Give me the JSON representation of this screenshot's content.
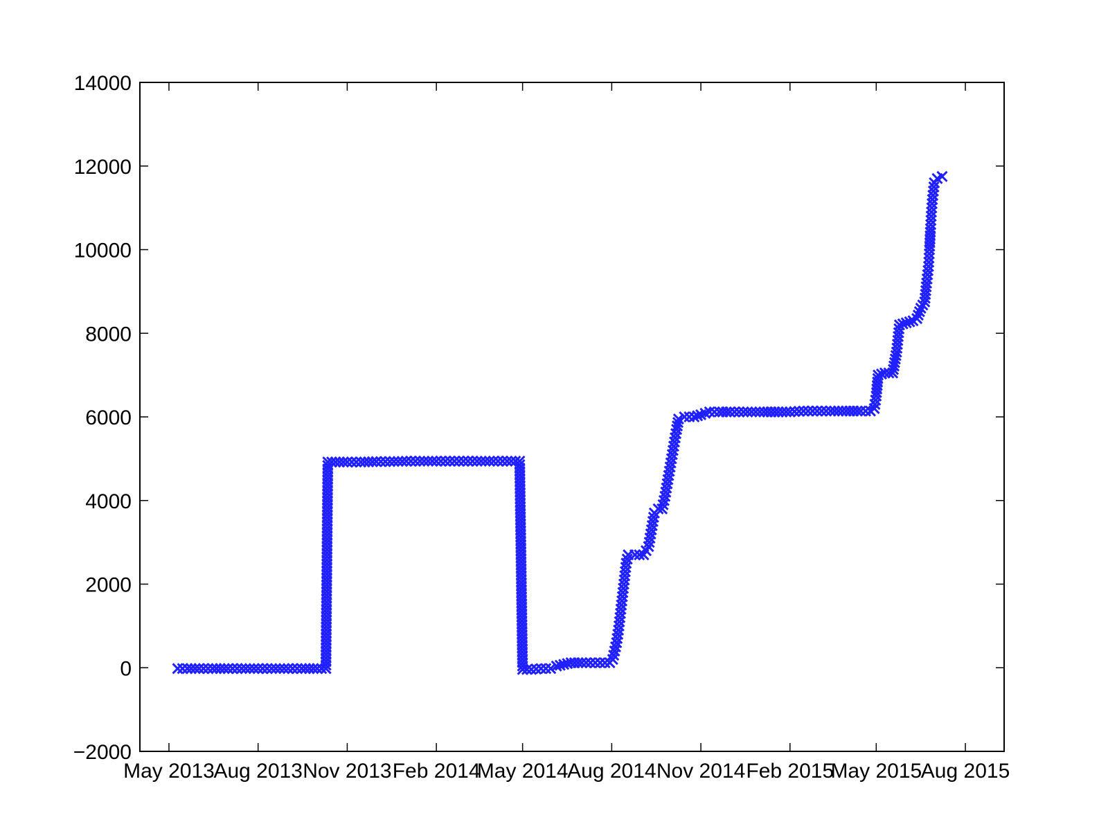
{
  "chart_data": {
    "type": "scatter",
    "title": "",
    "xlabel": "",
    "ylabel": "",
    "grid": false,
    "marker": "x",
    "color": "#1f1fff",
    "xlim": [
      "2013-04-01",
      "2015-09-10"
    ],
    "ylim": [
      -2000,
      14000
    ],
    "xticks": [
      {
        "date": "2013-05-01",
        "label": "May 2013"
      },
      {
        "date": "2013-08-01",
        "label": "Aug 2013"
      },
      {
        "date": "2013-11-01",
        "label": "Nov 2013"
      },
      {
        "date": "2014-02-01",
        "label": "Feb 2014"
      },
      {
        "date": "2014-05-01",
        "label": "May 2014"
      },
      {
        "date": "2014-08-01",
        "label": "Aug 2014"
      },
      {
        "date": "2014-11-01",
        "label": "Nov 2014"
      },
      {
        "date": "2015-02-01",
        "label": "Feb 2015"
      },
      {
        "date": "2015-05-01",
        "label": "May 2015"
      },
      {
        "date": "2015-08-01",
        "label": "Aug 2015"
      }
    ],
    "yticks": [
      {
        "value": -2000,
        "label": "−2000"
      },
      {
        "value": 0,
        "label": "0"
      },
      {
        "value": 2000,
        "label": "2000"
      },
      {
        "value": 4000,
        "label": "4000"
      },
      {
        "value": 6000,
        "label": "6000"
      },
      {
        "value": 8000,
        "label": "8000"
      },
      {
        "value": 10000,
        "label": "10000"
      },
      {
        "value": 12000,
        "label": "12000"
      },
      {
        "value": 14000,
        "label": "14000"
      }
    ],
    "series": [
      {
        "points": [
          [
            "2013-05-10",
            -20
          ],
          [
            "2013-05-20",
            -20
          ],
          [
            "2013-06-01",
            -20
          ],
          [
            "2013-06-15",
            -20
          ],
          [
            "2013-07-01",
            -20
          ],
          [
            "2013-07-15",
            -20
          ],
          [
            "2013-08-01",
            -20
          ],
          [
            "2013-08-15",
            -20
          ],
          [
            "2013-09-01",
            -20
          ],
          [
            "2013-09-15",
            -20
          ],
          [
            "2013-10-01",
            -20
          ],
          [
            "2013-10-10",
            -20
          ],
          [
            "2013-10-12",
            4920
          ],
          [
            "2013-10-20",
            4920
          ],
          [
            "2013-11-01",
            4920
          ],
          [
            "2013-11-15",
            4920
          ],
          [
            "2013-12-01",
            4930
          ],
          [
            "2013-12-15",
            4930
          ],
          [
            "2014-01-01",
            4940
          ],
          [
            "2014-01-15",
            4940
          ],
          [
            "2014-02-01",
            4940
          ],
          [
            "2014-02-15",
            4940
          ],
          [
            "2014-03-01",
            4940
          ],
          [
            "2014-03-15",
            4940
          ],
          [
            "2014-04-01",
            4940
          ],
          [
            "2014-04-15",
            4940
          ],
          [
            "2014-04-28",
            4940
          ],
          [
            "2014-05-01",
            -40
          ],
          [
            "2014-05-10",
            -40
          ],
          [
            "2014-05-20",
            -20
          ],
          [
            "2014-05-30",
            -20
          ],
          [
            "2014-06-05",
            40
          ],
          [
            "2014-06-20",
            120
          ],
          [
            "2014-07-01",
            120
          ],
          [
            "2014-07-10",
            120
          ],
          [
            "2014-07-20",
            120
          ],
          [
            "2014-07-30",
            120
          ],
          [
            "2014-08-02",
            200
          ],
          [
            "2014-08-04",
            400
          ],
          [
            "2014-08-06",
            600
          ],
          [
            "2014-08-08",
            900
          ],
          [
            "2014-08-10",
            1300
          ],
          [
            "2014-08-12",
            1700
          ],
          [
            "2014-08-14",
            2100
          ],
          [
            "2014-08-16",
            2500
          ],
          [
            "2014-08-18",
            2700
          ],
          [
            "2014-08-25",
            2700
          ],
          [
            "2014-09-03",
            2700
          ],
          [
            "2014-09-08",
            2900
          ],
          [
            "2014-09-11",
            3300
          ],
          [
            "2014-09-14",
            3700
          ],
          [
            "2014-09-18",
            3800
          ],
          [
            "2014-09-22",
            3800
          ],
          [
            "2014-09-25",
            4100
          ],
          [
            "2014-09-28",
            4500
          ],
          [
            "2014-10-01",
            4900
          ],
          [
            "2014-10-04",
            5300
          ],
          [
            "2014-10-07",
            5700
          ],
          [
            "2014-10-09",
            5950
          ],
          [
            "2014-10-15",
            6000
          ],
          [
            "2014-10-25",
            6000
          ],
          [
            "2014-11-01",
            6050
          ],
          [
            "2014-11-10",
            6120
          ],
          [
            "2014-11-20",
            6120
          ],
          [
            "2014-12-01",
            6120
          ],
          [
            "2014-12-15",
            6120
          ],
          [
            "2015-01-05",
            6120
          ],
          [
            "2015-01-20",
            6120
          ],
          [
            "2015-02-01",
            6120
          ],
          [
            "2015-02-15",
            6140
          ],
          [
            "2015-03-01",
            6140
          ],
          [
            "2015-03-15",
            6140
          ],
          [
            "2015-03-31",
            6140
          ],
          [
            "2015-04-15",
            6140
          ],
          [
            "2015-04-25",
            6140
          ],
          [
            "2015-04-29",
            6200
          ],
          [
            "2015-05-01",
            6500
          ],
          [
            "2015-05-03",
            7000
          ],
          [
            "2015-05-10",
            7050
          ],
          [
            "2015-05-18",
            7050
          ],
          [
            "2015-05-22",
            7550
          ],
          [
            "2015-05-25",
            8200
          ],
          [
            "2015-06-01",
            8250
          ],
          [
            "2015-06-08",
            8300
          ],
          [
            "2015-06-12",
            8350
          ],
          [
            "2015-06-16",
            8600
          ],
          [
            "2015-06-20",
            8750
          ],
          [
            "2015-06-22",
            9200
          ],
          [
            "2015-06-24",
            9600
          ],
          [
            "2015-06-25",
            10000
          ],
          [
            "2015-06-26",
            10500
          ],
          [
            "2015-06-27",
            10900
          ],
          [
            "2015-06-28",
            11200
          ],
          [
            "2015-06-30",
            11600
          ],
          [
            "2015-07-03",
            11700
          ],
          [
            "2015-07-08",
            11750
          ]
        ]
      }
    ]
  }
}
